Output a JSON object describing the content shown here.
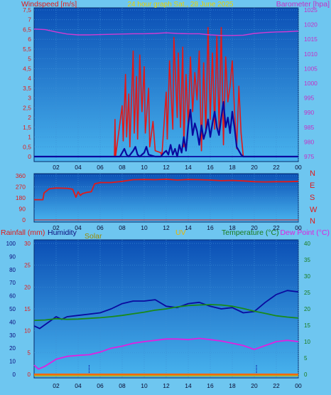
{
  "colors": {
    "background": "#6ec6f0",
    "panel_top": "#0b4fb5",
    "panel_bottom": "#48b4ee",
    "grid": "#3d8fd6",
    "wind_speed": "#e01a1a",
    "wind_avg": "#0a0a9e",
    "barometer": "#d23ad2",
    "wind_dir": "#e01a1a",
    "temperature": "#1a8a1a",
    "dew_point": "#e020e0",
    "humidity": "#0a0a9e",
    "rainfall": "#ff6600",
    "solar": "#0a0a9e",
    "uv": "#c9a800",
    "title": "#e6d200"
  },
  "title": "24 hour graph Sat., 28 June 2025",
  "chart_data": [
    {
      "type": "line",
      "name": "wind-barometer",
      "title": "24 hour graph Sat., 28 June 2025",
      "left_axis_label": "Windspeed [m/s]",
      "right_axis_label": "Barometer [hpa]",
      "left_ticks": [
        "0",
        "0,5",
        "1",
        "1,5",
        "2",
        "2,5",
        "3",
        "3,5",
        "4",
        "4,5",
        "5",
        "5,5",
        "6",
        "6,5",
        "7",
        "7,5"
      ],
      "right_ticks": [
        "975",
        "980",
        "985",
        "990",
        "995",
        "1000",
        "1005",
        "1010",
        "1015",
        "1020",
        "1025"
      ],
      "x_ticks": [
        "02",
        "04",
        "06",
        "08",
        "10",
        "12",
        "14",
        "16",
        "18",
        "20",
        "22",
        "00"
      ],
      "ylim_left": [
        0,
        7.5
      ],
      "ylim_right": [
        975,
        1025
      ],
      "xlim": [
        0,
        24
      ],
      "series": [
        {
          "key": "gust",
          "axis": "left",
          "x": [
            0,
            7.3,
            7.35,
            7.4,
            8.0,
            8.1,
            8.3,
            8.4,
            8.6,
            8.7,
            9.0,
            9.1,
            9.3,
            9.4,
            9.6,
            9.8,
            10.0,
            10.1,
            10.4,
            10.5,
            10.8,
            11.0,
            11.5,
            11.6,
            12.0,
            12.1,
            12.3,
            12.6,
            12.7,
            13.0,
            13.1,
            13.3,
            13.5,
            13.6,
            13.8,
            14.0,
            14.2,
            14.4,
            14.6,
            14.8,
            15.0,
            15.2,
            15.4,
            15.6,
            15.8,
            16.0,
            16.2,
            16.4,
            16.6,
            16.8,
            17.0,
            17.2,
            17.4,
            17.6,
            17.8,
            18.0,
            18.2,
            18.4,
            18.6,
            18.8,
            19.0,
            24
          ],
          "y": [
            0,
            0,
            1.9,
            0,
            2.6,
            0.8,
            4.2,
            1.0,
            3.2,
            0.5,
            5.4,
            1.2,
            4.1,
            0.9,
            5.2,
            2.3,
            4.6,
            1.2,
            3.5,
            0.5,
            1.8,
            0.3,
            0.2,
            0,
            3.3,
            0.9,
            4.9,
            1.4,
            6.1,
            2.0,
            5.3,
            1.5,
            5.6,
            0.5,
            4.2,
            1.6,
            5.1,
            2.3,
            4.3,
            2.9,
            5.4,
            0.3,
            4.8,
            1.2,
            6.6,
            1.9,
            5.3,
            1.4,
            6.2,
            1.4,
            6.6,
            0.6,
            5.1,
            2.8,
            3.6,
            4.9,
            2.4,
            0.4,
            3.6,
            1.2,
            0,
            0
          ]
        },
        {
          "key": "average",
          "axis": "left",
          "x": [
            0,
            7.8,
            8.0,
            8.2,
            8.4,
            8.6,
            9.0,
            9.2,
            9.4,
            9.6,
            10.0,
            10.2,
            10.4,
            11.0,
            11.5,
            11.8,
            12.0,
            12.2,
            12.4,
            12.6,
            12.8,
            13.0,
            13.2,
            13.4,
            13.6,
            13.8,
            14.0,
            14.2,
            14.4,
            14.6,
            14.8,
            15.0,
            15.2,
            15.4,
            15.6,
            15.8,
            16.0,
            16.2,
            16.4,
            16.6,
            16.8,
            17.0,
            17.2,
            17.4,
            17.6,
            17.8,
            18.0,
            18.2,
            18.4,
            18.6,
            18.8,
            19.0,
            24
          ],
          "y": [
            0,
            0,
            0.2,
            0.4,
            0.1,
            0,
            0.3,
            0.5,
            0.1,
            0,
            0.2,
            0.5,
            0.1,
            0,
            0,
            0.2,
            0.3,
            0.1,
            0.6,
            0.1,
            0.4,
            0,
            0.6,
            0.2,
            1.0,
            0.3,
            1.6,
            2.4,
            1.1,
            1.7,
            1.3,
            0.6,
            1.6,
            0.9,
            1.3,
            1.9,
            1.0,
            1.7,
            2.3,
            1.5,
            1.1,
            2.0,
            2.8,
            1.5,
            2.0,
            1.2,
            2.3,
            1.5,
            0.5,
            0.3,
            0.1,
            0,
            0
          ]
        },
        {
          "key": "barometer",
          "axis": "right",
          "x": [
            0,
            1,
            2,
            3,
            4,
            5,
            6,
            7,
            8,
            9,
            10,
            11,
            12,
            13,
            14,
            15,
            16,
            17,
            18,
            19,
            20,
            21,
            22,
            23,
            24
          ],
          "y": [
            1018.5,
            1018.3,
            1017.5,
            1016.8,
            1016.5,
            1016.5,
            1016.6,
            1016.7,
            1016.8,
            1016.9,
            1016.9,
            1017.0,
            1017.2,
            1017.0,
            1016.9,
            1016.9,
            1016.5,
            1016.3,
            1016.3,
            1016.4,
            1017.0,
            1017.3,
            1017.5,
            1017.6,
            1017.8
          ]
        }
      ]
    },
    {
      "type": "line",
      "name": "wind-direction",
      "left_ticks": [
        "0",
        "90",
        "180",
        "270",
        "360"
      ],
      "right_ticks": [
        "N",
        "W",
        "S",
        "E",
        "N"
      ],
      "x_ticks": [
        "02",
        "04",
        "06",
        "08",
        "10",
        "12",
        "14",
        "16",
        "18",
        "20",
        "22",
        "00"
      ],
      "ylim": [
        0,
        360
      ],
      "xlim": [
        0,
        24
      ],
      "series": [
        {
          "key": "direction",
          "x": [
            0,
            0.8,
            0.9,
            1.4,
            2.0,
            3.0,
            3.5,
            3.8,
            4.0,
            4.2,
            4.4,
            4.8,
            5.2,
            5.5,
            5.8,
            6.0,
            7.0,
            8.0,
            9.0,
            10.0,
            11.0,
            12.0,
            13.0,
            14.0,
            15.0,
            16.0,
            17.0,
            18.0,
            19.0,
            20.0,
            21.0,
            22.0,
            23.0,
            24.0
          ],
          "y": [
            165,
            165,
            220,
            255,
            260,
            258,
            250,
            185,
            230,
            200,
            215,
            225,
            230,
            295,
            300,
            305,
            305,
            315,
            328,
            330,
            328,
            332,
            325,
            330,
            328,
            325,
            320,
            322,
            318,
            312,
            310,
            312,
            312,
            315
          ]
        }
      ]
    },
    {
      "type": "line",
      "name": "temperature-humidity",
      "rain_label": "Rainfall (mm)",
      "humidity_label": "Humidity",
      "solar_label": "Solar",
      "uv_label": "UV",
      "temperature_label": "Temperature (°C)",
      "dewpoint_label": "Dew Point (°C)",
      "humidity_ticks": [
        "0",
        "10",
        "20",
        "30",
        "40",
        "50",
        "60",
        "70",
        "80",
        "90",
        "100"
      ],
      "rain_ticks": [
        "0",
        "5",
        "10",
        "15",
        "20",
        "25",
        "30"
      ],
      "temp_ticks": [
        "0",
        "5",
        "10",
        "15",
        "20",
        "25",
        "30",
        "35",
        "40"
      ],
      "x_ticks": [
        "02",
        "04",
        "06",
        "08",
        "10",
        "12",
        "14",
        "16",
        "18",
        "20",
        "22",
        "00"
      ],
      "ylim_humidity": [
        0,
        100
      ],
      "ylim_temp": [
        0,
        40
      ],
      "xlim": [
        0,
        24
      ],
      "series": [
        {
          "key": "humidity",
          "x": [
            0,
            0.5,
            1,
            1.5,
            2,
            2.5,
            3,
            4,
            5,
            6,
            7,
            8,
            9,
            10,
            11,
            12,
            13,
            14,
            15,
            16,
            17,
            18,
            19,
            20,
            21,
            22,
            23,
            24
          ],
          "y": [
            37,
            35,
            38,
            41,
            44,
            42,
            44,
            45,
            46,
            47,
            50,
            54,
            56,
            56,
            57,
            52,
            51,
            54,
            55,
            52,
            50,
            51,
            47,
            48,
            55,
            61,
            64,
            63
          ]
        },
        {
          "key": "temperature",
          "x": [
            0,
            1,
            2,
            3,
            4,
            5,
            6,
            7,
            8,
            9,
            10,
            11,
            12,
            13,
            14,
            15,
            16,
            17,
            18,
            19,
            20,
            21,
            22,
            23,
            24
          ],
          "y": [
            16.5,
            16.6,
            17.0,
            16.8,
            16.9,
            17.1,
            17.3,
            17.6,
            18.0,
            18.5,
            19.0,
            19.6,
            20.0,
            20.6,
            21.0,
            21.2,
            21.3,
            21.2,
            20.8,
            20.1,
            19.3,
            18.6,
            17.9,
            17.5,
            17.2
          ]
        },
        {
          "key": "dewpoint",
          "x": [
            0,
            0.4,
            1,
            2,
            3,
            4,
            5,
            6,
            7,
            8,
            9,
            10,
            11,
            12,
            13,
            14,
            15,
            16,
            17,
            18,
            19,
            20,
            21,
            22,
            23,
            24
          ],
          "y": [
            2.8,
            1.6,
            2.5,
            4.6,
            5.5,
            5.8,
            6.0,
            6.8,
            8.0,
            8.6,
            9.5,
            10.0,
            10.4,
            10.8,
            10.8,
            10.6,
            11.0,
            10.6,
            10.2,
            9.5,
            8.8,
            7.6,
            8.8,
            10.0,
            10.4,
            10.0
          ]
        },
        {
          "key": "solar_marks",
          "x": [
            5.0,
            20.2
          ],
          "y": [
            6,
            6
          ]
        },
        {
          "key": "rainfall",
          "x": [
            0,
            24
          ],
          "y": [
            0,
            0
          ]
        }
      ]
    }
  ]
}
